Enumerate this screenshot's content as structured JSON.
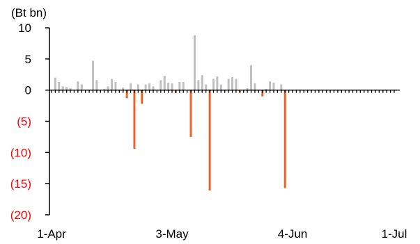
{
  "chart_data": {
    "type": "bar",
    "unit_label": "(Bt bn)",
    "ylim": [
      -20,
      10
    ],
    "y_ticks": [
      {
        "value": 10,
        "label": "10"
      },
      {
        "value": 5,
        "label": "5"
      },
      {
        "value": 0,
        "label": "0"
      },
      {
        "value": -5,
        "label": "(5)"
      },
      {
        "value": -10,
        "label": "(10)"
      },
      {
        "value": -15,
        "label": "(15)"
      },
      {
        "value": -20,
        "label": "(20)"
      }
    ],
    "x_ticks": [
      {
        "day": 0,
        "label": "1-Apr"
      },
      {
        "day": 32,
        "label": "3-May"
      },
      {
        "day": 64,
        "label": "4-Jun"
      },
      {
        "day": 91,
        "label": "1-Jul"
      }
    ],
    "x_range_days": [
      0,
      91
    ],
    "colors": {
      "positive": "#c0c0c0",
      "negative": "#e8642a",
      "negative_tick_label": "#ff0000",
      "positive_tick_label": "#000000",
      "axis": "#000000"
    },
    "values": [
      {
        "day": 1,
        "value": 2.0
      },
      {
        "day": 2,
        "value": 1.3
      },
      {
        "day": 3,
        "value": 0.6
      },
      {
        "day": 4,
        "value": 0.5
      },
      {
        "day": 5,
        "value": 0.3
      },
      {
        "day": 7,
        "value": 1.4
      },
      {
        "day": 8,
        "value": 0.9
      },
      {
        "day": 11,
        "value": 4.7
      },
      {
        "day": 12,
        "value": 1.6
      },
      {
        "day": 14,
        "value": 0.2
      },
      {
        "day": 15,
        "value": 0.6
      },
      {
        "day": 16,
        "value": 1.8
      },
      {
        "day": 17,
        "value": 1.3
      },
      {
        "day": 19,
        "value": 0.4
      },
      {
        "day": 20,
        "value": -1.3
      },
      {
        "day": 21,
        "value": 1.1
      },
      {
        "day": 22,
        "value": -9.4
      },
      {
        "day": 23,
        "value": 0.9
      },
      {
        "day": 24,
        "value": -2.2
      },
      {
        "day": 25,
        "value": 0.9
      },
      {
        "day": 26,
        "value": 1.1
      },
      {
        "day": 27,
        "value": 0.6
      },
      {
        "day": 29,
        "value": 1.6
      },
      {
        "day": 30,
        "value": 2.3
      },
      {
        "day": 31,
        "value": 1.2
      },
      {
        "day": 32,
        "value": 1.1
      },
      {
        "day": 33,
        "value": -0.5
      },
      {
        "day": 34,
        "value": 1.3
      },
      {
        "day": 35,
        "value": 1.3
      },
      {
        "day": 37,
        "value": -7.5
      },
      {
        "day": 38,
        "value": 8.8
      },
      {
        "day": 39,
        "value": 1.6
      },
      {
        "day": 40,
        "value": 2.4
      },
      {
        "day": 41,
        "value": 0.9
      },
      {
        "day": 42,
        "value": -16.1
      },
      {
        "day": 43,
        "value": 1.8
      },
      {
        "day": 44,
        "value": 2.2
      },
      {
        "day": 45,
        "value": 0.9
      },
      {
        "day": 47,
        "value": 1.8
      },
      {
        "day": 48,
        "value": 2.1
      },
      {
        "day": 49,
        "value": 1.8
      },
      {
        "day": 50,
        "value": -0.4
      },
      {
        "day": 52,
        "value": 0.3
      },
      {
        "day": 53,
        "value": 4.0
      },
      {
        "day": 54,
        "value": 1.1
      },
      {
        "day": 56,
        "value": -1.0
      },
      {
        "day": 57,
        "value": 0.2
      },
      {
        "day": 58,
        "value": 1.4
      },
      {
        "day": 59,
        "value": 1.2
      },
      {
        "day": 61,
        "value": 0.9
      },
      {
        "day": 62,
        "value": -15.7
      }
    ]
  }
}
